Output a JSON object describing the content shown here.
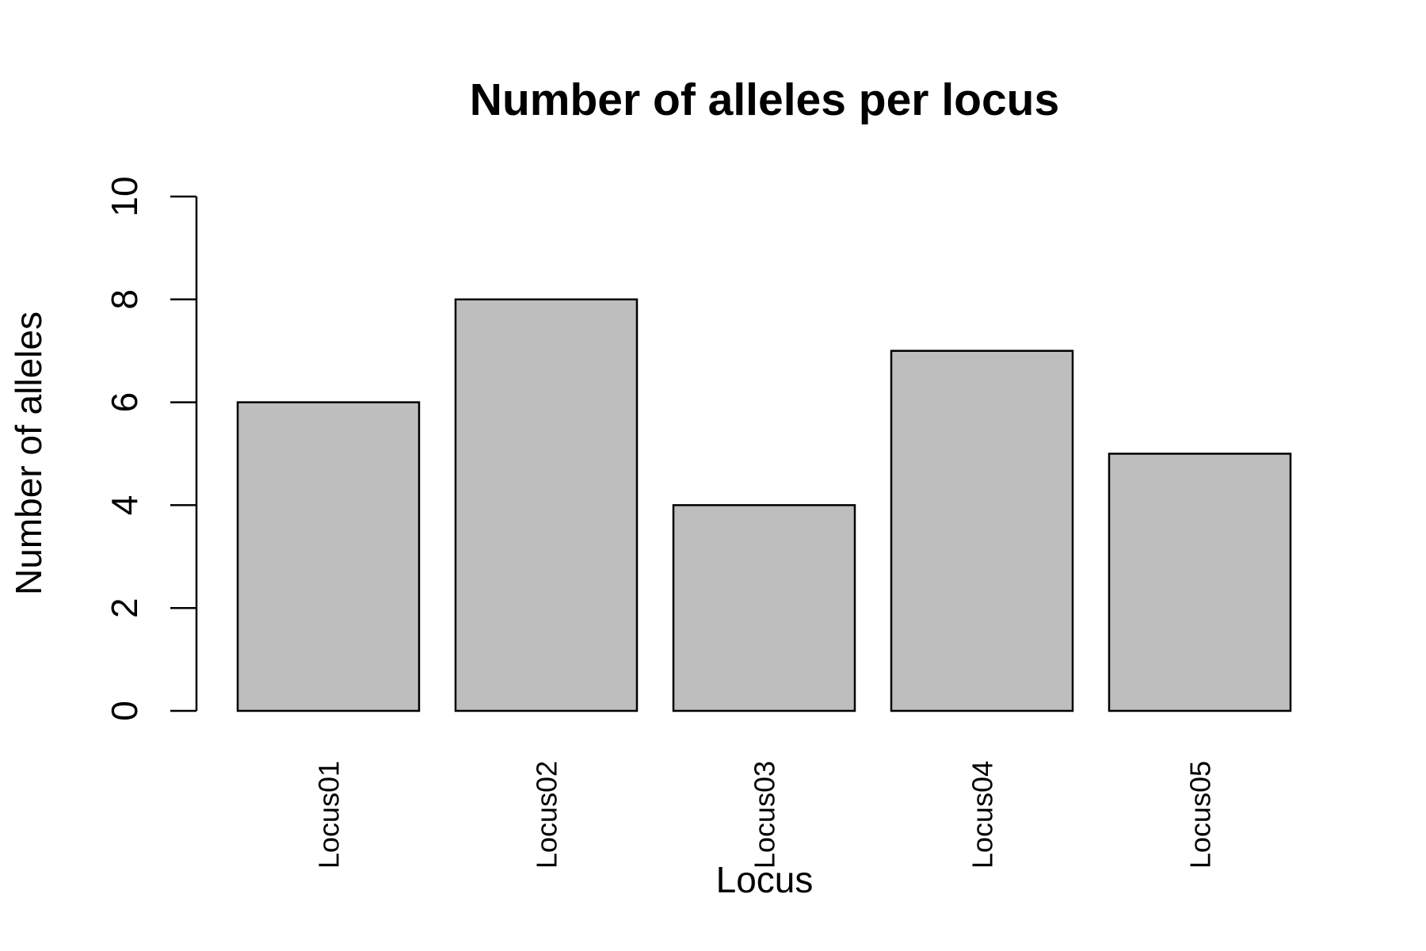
{
  "chart_data": {
    "type": "bar",
    "title": "Number of alleles per locus",
    "xlabel": "Locus",
    "ylabel": "Number of alleles",
    "categories": [
      "Locus01",
      "Locus02",
      "Locus03",
      "Locus04",
      "Locus05"
    ],
    "values": [
      6,
      8,
      4,
      7,
      5
    ],
    "ylim": [
      0,
      10
    ],
    "yticks": [
      0,
      2,
      4,
      6,
      8,
      10
    ],
    "grid": false,
    "legend": "none",
    "bar_color": "#bebebe",
    "edge_color": "#000000"
  }
}
